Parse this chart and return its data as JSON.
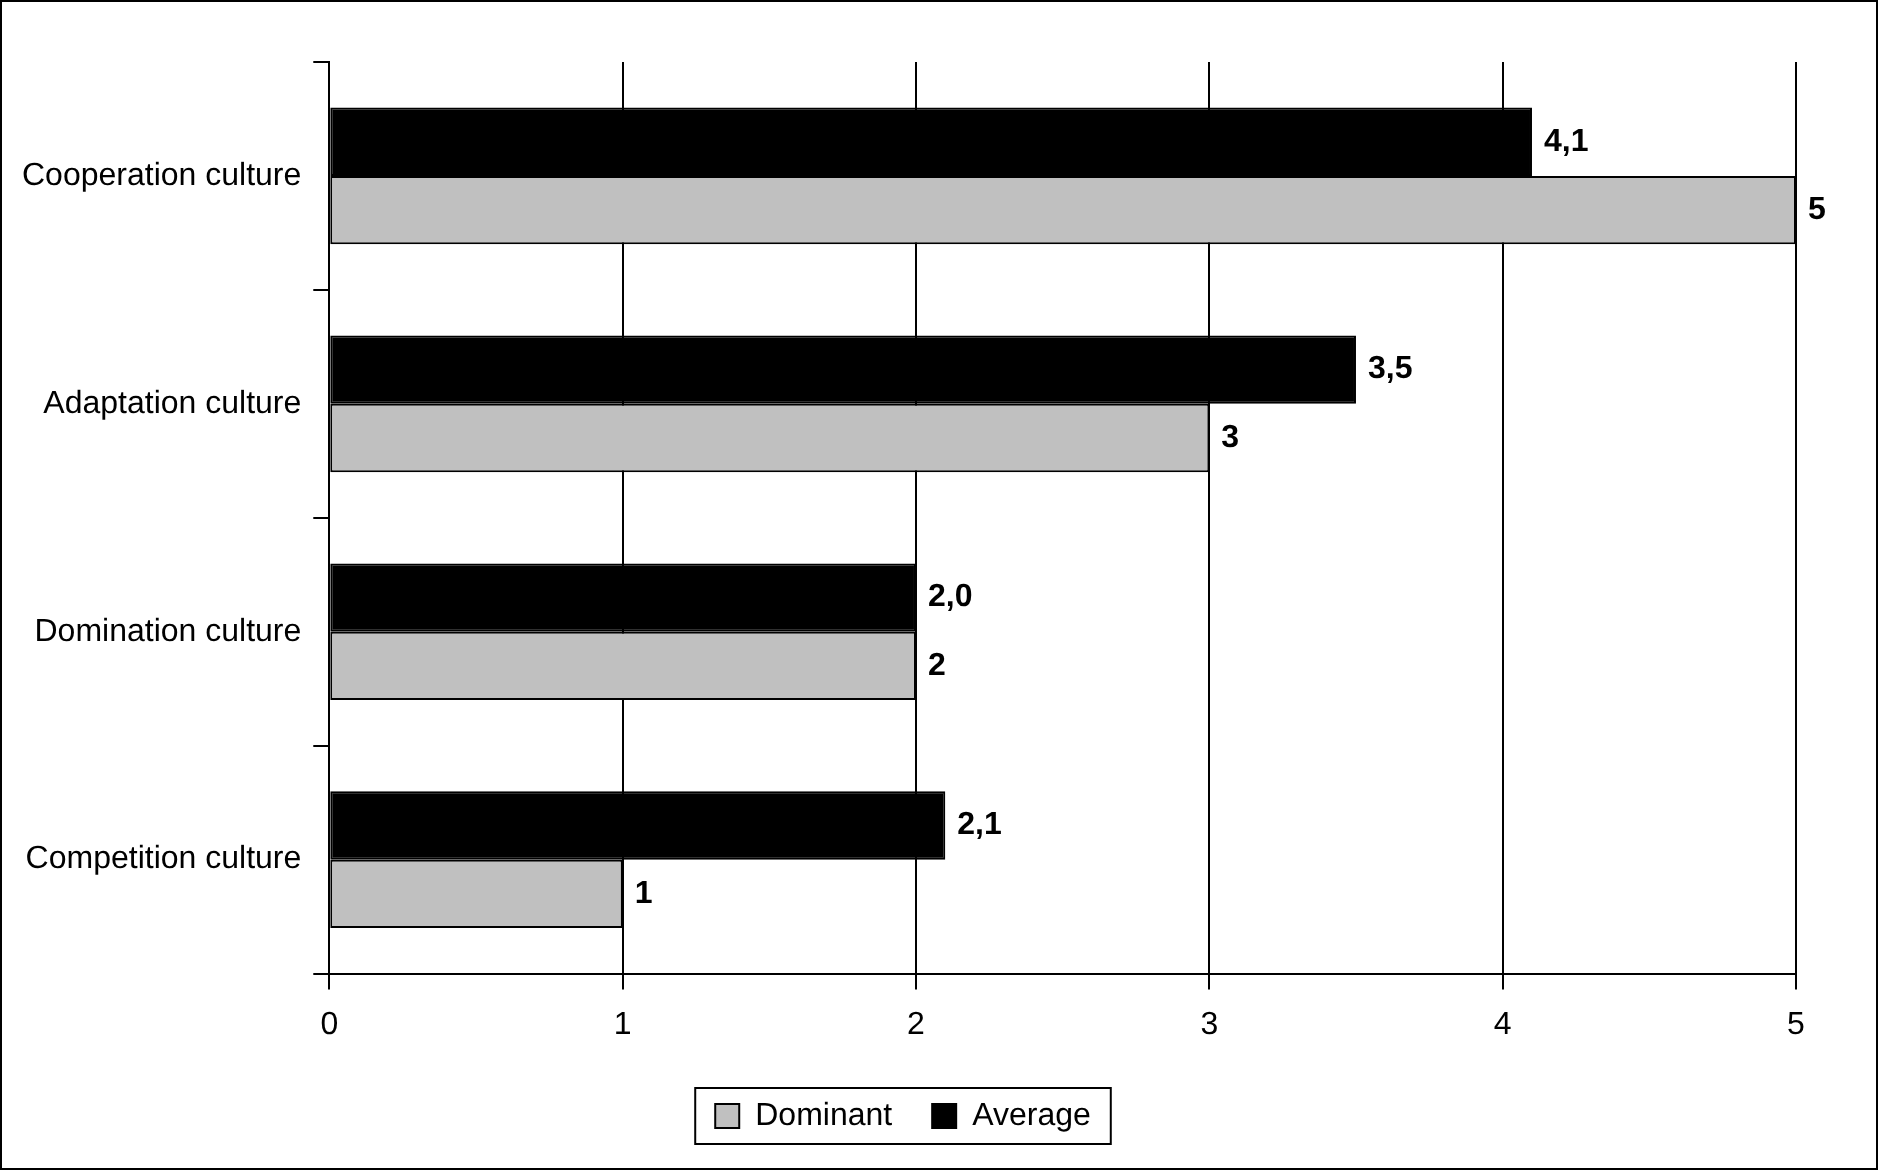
{
  "chart_data": {
    "type": "bar",
    "orientation": "horizontal",
    "categories": [
      "Cooperation culture",
      "Adaptation culture",
      "Domination culture",
      "Competition culture"
    ],
    "series": [
      {
        "name": "Dominant",
        "color": "#c0c0c0",
        "values": [
          5,
          3,
          2,
          1
        ],
        "value_labels": [
          "5",
          "3",
          "2",
          "1"
        ]
      },
      {
        "name": "Average",
        "color": "#000000",
        "values": [
          4.1,
          3.5,
          2.0,
          2.1
        ],
        "value_labels": [
          "4,1",
          "3,5",
          "2,0",
          "2,1"
        ]
      }
    ],
    "xlim": [
      0,
      5
    ],
    "xticks": [
      0,
      1,
      2,
      3,
      4,
      5
    ],
    "grid": "x",
    "legend": "bottom"
  }
}
